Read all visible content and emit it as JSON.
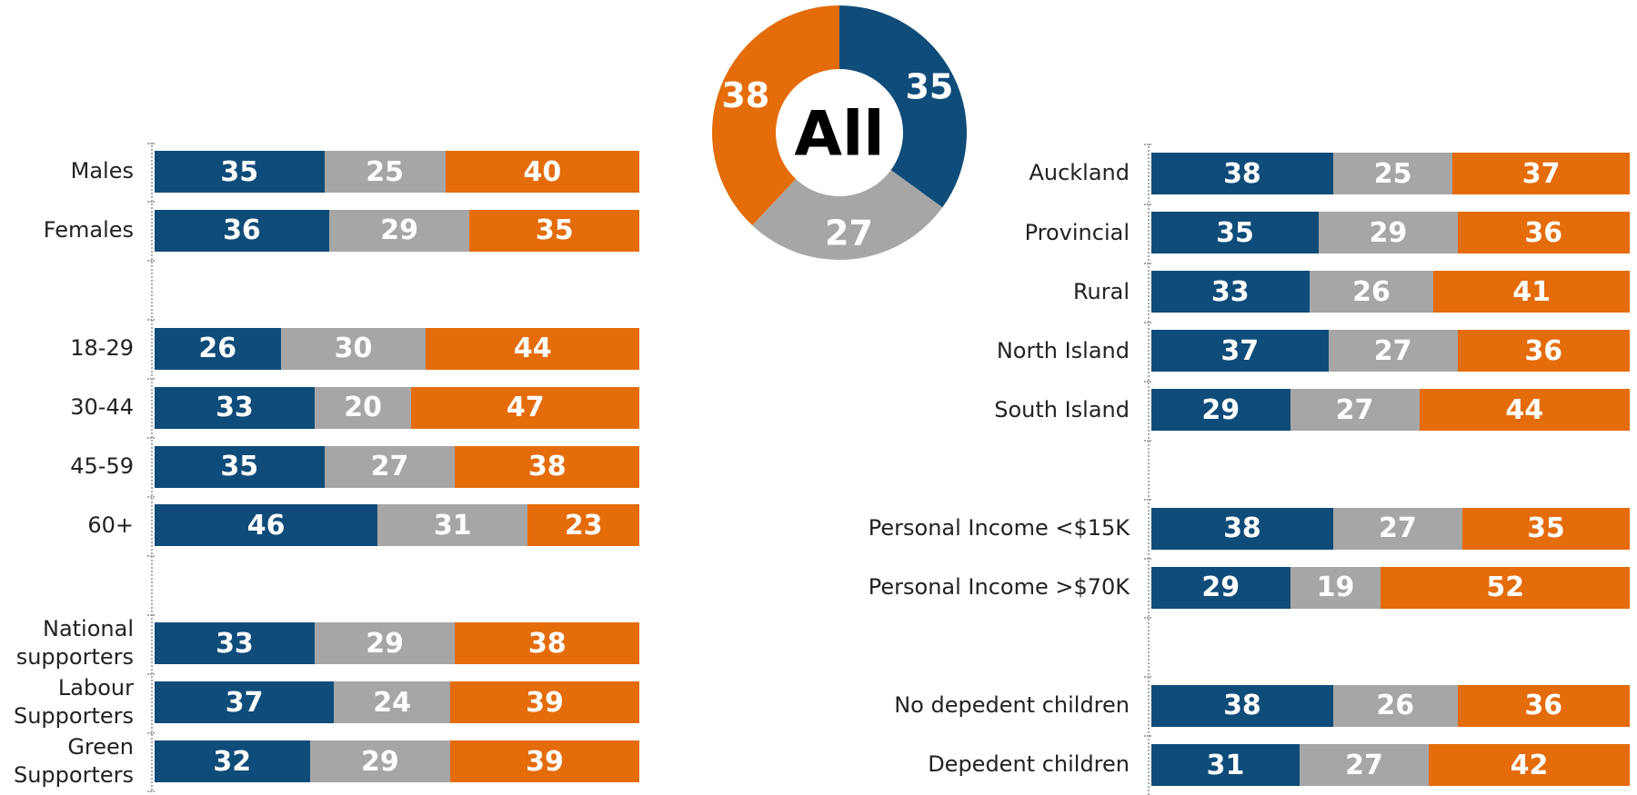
{
  "chart_data": [
    {
      "type": "donut",
      "center_label": "All",
      "values": [
        35,
        27,
        38
      ],
      "colors": [
        "#0f4c7a",
        "#a6a6a6",
        "#e46c0a"
      ]
    },
    {
      "type": "stacked-hbar",
      "xlim": [
        0,
        100
      ],
      "categories": [
        "Males",
        "Females",
        null,
        "18-29",
        "30-44",
        "45-59",
        "60+",
        null,
        "National supporters",
        "Labour Supporters",
        "Green Supporters"
      ],
      "series": [
        {
          "color": "#0f4c7a",
          "values": [
            35,
            36,
            null,
            26,
            33,
            35,
            46,
            null,
            33,
            37,
            32
          ]
        },
        {
          "color": "#a6a6a6",
          "values": [
            25,
            29,
            null,
            30,
            20,
            27,
            31,
            null,
            29,
            24,
            29
          ]
        },
        {
          "color": "#e46c0a",
          "values": [
            40,
            35,
            null,
            44,
            47,
            38,
            23,
            null,
            38,
            39,
            39
          ]
        }
      ]
    },
    {
      "type": "stacked-hbar",
      "xlim": [
        0,
        100
      ],
      "categories": [
        "Auckland",
        "Provincial",
        "Rural",
        "North Island",
        "South Island",
        null,
        "Personal Income <$15K",
        "Personal Income >$70K",
        null,
        "No depedent children",
        "Depedent children"
      ],
      "series": [
        {
          "color": "#0f4c7a",
          "values": [
            38,
            35,
            33,
            37,
            29,
            null,
            38,
            29,
            null,
            38,
            31
          ]
        },
        {
          "color": "#a6a6a6",
          "values": [
            25,
            29,
            26,
            27,
            27,
            null,
            27,
            19,
            null,
            26,
            27
          ]
        },
        {
          "color": "#e46c0a",
          "values": [
            37,
            36,
            41,
            36,
            44,
            null,
            35,
            52,
            null,
            36,
            42
          ]
        }
      ]
    }
  ]
}
